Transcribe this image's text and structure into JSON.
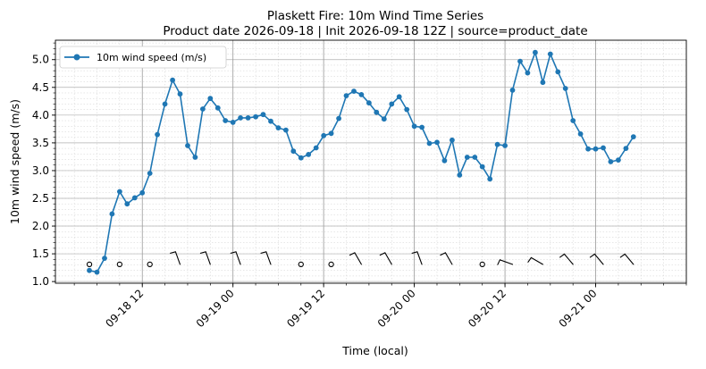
{
  "chart_data": {
    "type": "line",
    "title": "Plaskett Fire: 10m Wind Time Series",
    "subtitle": "Product date 2026-09-18 | Init 2026-09-18 12Z | source=product_date",
    "xlabel": "Time (local)",
    "ylabel": "10m wind speed (m/s)",
    "xlim": [
      "2026-09-18 00:30",
      "2026-09-21 12:00"
    ],
    "ylim": [
      0.97,
      5.35
    ],
    "x_major_ticks": [
      "2026-09-18 12:00",
      "2026-09-19 00:00",
      "2026-09-19 12:00",
      "2026-09-20 00:00",
      "2026-09-20 12:00",
      "2026-09-21 00:00"
    ],
    "x_tick_labels": [
      "09-18 12",
      "09-19 00",
      "09-19 12",
      "09-20 00",
      "09-20 12",
      "09-21 00"
    ],
    "y_ticks": [
      1.0,
      1.5,
      2.0,
      2.5,
      3.0,
      3.5,
      4.0,
      4.5,
      5.0
    ],
    "y_tick_labels": [
      "1.0",
      "1.5",
      "2.0",
      "2.5",
      "3.0",
      "3.5",
      "4.0",
      "4.5",
      "5.0"
    ],
    "grid": true,
    "legend_position": "top-left",
    "series": [
      {
        "name": "10m wind speed (m/s)",
        "color": "#1f77b4",
        "marker": "circle",
        "x_start": "2026-09-18 05:00",
        "x_step_hours": 1,
        "values": [
          1.2,
          1.17,
          1.42,
          2.22,
          2.62,
          2.4,
          2.51,
          2.6,
          2.95,
          3.65,
          4.2,
          4.63,
          4.38,
          3.45,
          3.24,
          4.11,
          4.3,
          4.13,
          3.9,
          3.87,
          3.95,
          3.95,
          3.97,
          4.01,
          3.89,
          3.77,
          3.73,
          3.35,
          3.23,
          3.29,
          3.41,
          3.63,
          3.67,
          3.94,
          4.35,
          4.43,
          4.37,
          4.22,
          4.05,
          3.93,
          4.2,
          4.33,
          4.1,
          3.8,
          3.78,
          3.49,
          3.51,
          3.18,
          3.55,
          2.92,
          3.24,
          3.24,
          3.07,
          2.85,
          3.47,
          3.45,
          4.45,
          4.97,
          4.76,
          5.13,
          4.59,
          5.1,
          4.78,
          4.48,
          3.9,
          3.66,
          3.39,
          3.39,
          3.41,
          3.16,
          3.19,
          3.4,
          3.61
        ]
      }
    ],
    "wind_barbs": {
      "y_value": 1.31,
      "entries": [
        {
          "time": "2026-09-18 05:00",
          "type": "calm"
        },
        {
          "time": "2026-09-18 09:00",
          "type": "calm"
        },
        {
          "time": "2026-09-18 13:00",
          "type": "calm"
        },
        {
          "time": "2026-09-18 17:00",
          "type": "barb",
          "dir": 340
        },
        {
          "time": "2026-09-18 21:00",
          "type": "barb",
          "dir": 340
        },
        {
          "time": "2026-09-19 01:00",
          "type": "barb",
          "dir": 340
        },
        {
          "time": "2026-09-19 05:00",
          "type": "barb",
          "dir": 340
        },
        {
          "time": "2026-09-19 09:00",
          "type": "calm"
        },
        {
          "time": "2026-09-19 13:00",
          "type": "calm"
        },
        {
          "time": "2026-09-19 17:00",
          "type": "barb",
          "dir": 330
        },
        {
          "time": "2026-09-19 21:00",
          "type": "barb",
          "dir": 330
        },
        {
          "time": "2026-09-20 01:00",
          "type": "barb",
          "dir": 340
        },
        {
          "time": "2026-09-20 05:00",
          "type": "barb",
          "dir": 330
        },
        {
          "time": "2026-09-20 09:00",
          "type": "calm"
        },
        {
          "time": "2026-09-20 13:00",
          "type": "barb",
          "dir": 290
        },
        {
          "time": "2026-09-20 17:00",
          "type": "barb",
          "dir": 300
        },
        {
          "time": "2026-09-20 21:00",
          "type": "barb",
          "dir": 320
        },
        {
          "time": "2026-09-21 01:00",
          "type": "barb",
          "dir": 320
        },
        {
          "time": "2026-09-21 05:00",
          "type": "barb",
          "dir": 320
        }
      ]
    }
  }
}
